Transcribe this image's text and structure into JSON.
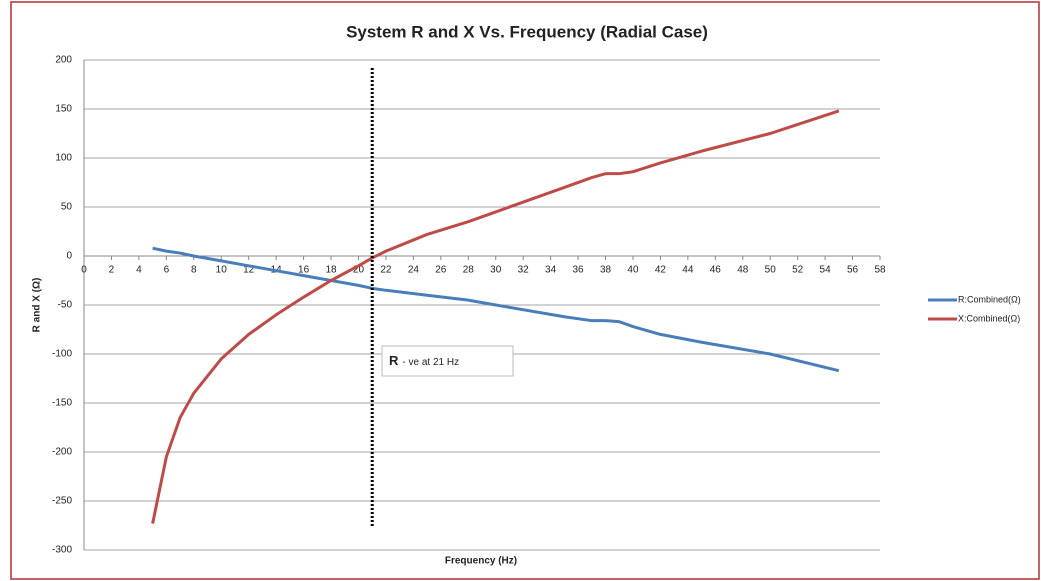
{
  "chart_data": {
    "type": "line",
    "title": "System R and X Vs. Frequency (Radial Case)",
    "x_label": "Frequency (Hz)",
    "y_label": "R and X (Ω)",
    "x": [
      5,
      6,
      7,
      8,
      10,
      12,
      14,
      16,
      18,
      20,
      21,
      22,
      25,
      28,
      30,
      35,
      37,
      38,
      39,
      40,
      42,
      45,
      50,
      55
    ],
    "series": [
      {
        "name": "R:Combined(Ω)",
        "color": "#4a7ebb",
        "values": [
          8,
          5,
          3,
          0,
          -5,
          -10,
          -15,
          -20,
          -25,
          -30,
          -33,
          -35,
          -40,
          -45,
          -50,
          -62,
          -66,
          -66,
          -67,
          -72,
          -80,
          -88,
          -100,
          -117
        ]
      },
      {
        "name": "X:Combined(Ω)",
        "color": "#be4b48",
        "values": [
          -273,
          -205,
          -165,
          -140,
          -105,
          -80,
          -60,
          -42,
          -25,
          -10,
          -2,
          5,
          22,
          35,
          45,
          70,
          80,
          84,
          84,
          86,
          95,
          107,
          125,
          148
        ]
      }
    ],
    "xlim": [
      0,
      58
    ],
    "xticks": [
      0,
      2,
      4,
      6,
      8,
      10,
      12,
      14,
      16,
      18,
      20,
      22,
      24,
      26,
      28,
      30,
      32,
      34,
      36,
      38,
      40,
      42,
      44,
      46,
      48,
      50,
      52,
      54,
      56,
      58
    ],
    "ylim": [
      -300,
      200
    ],
    "yticks": [
      -300,
      -250,
      -200,
      -150,
      -100,
      -50,
      0,
      50,
      100,
      150,
      200
    ],
    "grid": true,
    "legend": "right",
    "vline": 21,
    "annotation": {
      "bold": "R",
      "text": "- ve at 21 Hz"
    }
  }
}
